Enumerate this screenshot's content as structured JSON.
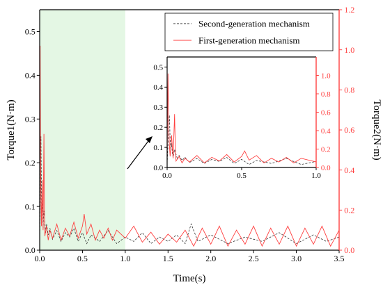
{
  "chart_data": {
    "type": "line",
    "xlabel": "Time(s)",
    "ylabel_left": "Torque1(N·m)",
    "ylabel_right": "Torque2(N·m)",
    "xlim": [
      0,
      3.5
    ],
    "ylim_left": [
      0,
      0.55
    ],
    "ylim_right": [
      0,
      1.2
    ],
    "x_ticks": [
      "0.0",
      "0.5",
      "1.0",
      "1.5",
      "2.0",
      "2.5",
      "3.0",
      "3.5"
    ],
    "y_left_ticks": [
      "0.0",
      "0.1",
      "0.2",
      "0.3",
      "0.4",
      "0.5"
    ],
    "y_right_ticks": [
      "0.0",
      "0.2",
      "0.4",
      "0.6",
      "0.8",
      "1.0",
      "1.2"
    ],
    "highlight_region": {
      "x_from": 0.0,
      "x_to": 1.0,
      "color": "#e4f7e4"
    },
    "legend_placement": "top-right",
    "grid": false,
    "series": [
      {
        "name": "Second-generation mechanism",
        "axis": "left",
        "color": "#333333",
        "dash": "dashed",
        "values": [
          [
            0.0,
            0.02
          ],
          [
            0.005,
            0.1
          ],
          [
            0.01,
            0.19
          ],
          [
            0.015,
            0.26
          ],
          [
            0.02,
            0.14
          ],
          [
            0.025,
            0.09
          ],
          [
            0.03,
            0.12
          ],
          [
            0.035,
            0.07
          ],
          [
            0.04,
            0.05
          ],
          [
            0.05,
            0.09
          ],
          [
            0.06,
            0.065
          ],
          [
            0.07,
            0.04
          ],
          [
            0.08,
            0.06
          ],
          [
            0.1,
            0.035
          ],
          [
            0.12,
            0.05
          ],
          [
            0.15,
            0.025
          ],
          [
            0.2,
            0.045
          ],
          [
            0.25,
            0.02
          ],
          [
            0.3,
            0.04
          ],
          [
            0.35,
            0.03
          ],
          [
            0.4,
            0.05
          ],
          [
            0.45,
            0.02
          ],
          [
            0.5,
            0.04
          ],
          [
            0.55,
            0.015
          ],
          [
            0.6,
            0.035
          ],
          [
            0.7,
            0.02
          ],
          [
            0.8,
            0.045
          ],
          [
            0.9,
            0.015
          ],
          [
            1.0,
            0.03
          ],
          [
            1.1,
            0.02
          ],
          [
            1.2,
            0.04
          ],
          [
            1.3,
            0.015
          ],
          [
            1.4,
            0.03
          ],
          [
            1.5,
            0.02
          ],
          [
            1.6,
            0.035
          ],
          [
            1.7,
            0.015
          ],
          [
            1.77,
            0.06
          ],
          [
            1.85,
            0.02
          ],
          [
            2.0,
            0.035
          ],
          [
            2.2,
            0.015
          ],
          [
            2.4,
            0.03
          ],
          [
            2.6,
            0.02
          ],
          [
            2.8,
            0.04
          ],
          [
            3.0,
            0.015
          ],
          [
            3.2,
            0.035
          ],
          [
            3.35,
            0.02
          ],
          [
            3.5,
            0.03
          ]
        ]
      },
      {
        "name": "First-generation mechanism",
        "axis": "right",
        "color": "#ff4040",
        "dash": "solid",
        "values": [
          [
            0.0,
            0.05
          ],
          [
            0.003,
            0.6
          ],
          [
            0.006,
            1.02
          ],
          [
            0.01,
            0.5
          ],
          [
            0.015,
            0.25
          ],
          [
            0.02,
            0.12
          ],
          [
            0.03,
            0.35
          ],
          [
            0.04,
            0.1
          ],
          [
            0.05,
            0.58
          ],
          [
            0.055,
            0.2
          ],
          [
            0.06,
            0.07
          ],
          [
            0.08,
            0.12
          ],
          [
            0.1,
            0.05
          ],
          [
            0.12,
            0.1
          ],
          [
            0.15,
            0.06
          ],
          [
            0.2,
            0.13
          ],
          [
            0.25,
            0.05
          ],
          [
            0.3,
            0.11
          ],
          [
            0.35,
            0.07
          ],
          [
            0.4,
            0.14
          ],
          [
            0.45,
            0.06
          ],
          [
            0.5,
            0.12
          ],
          [
            0.52,
            0.18
          ],
          [
            0.55,
            0.08
          ],
          [
            0.6,
            0.13
          ],
          [
            0.65,
            0.05
          ],
          [
            0.7,
            0.1
          ],
          [
            0.75,
            0.06
          ],
          [
            0.8,
            0.11
          ],
          [
            0.85,
            0.05
          ],
          [
            0.9,
            0.1
          ],
          [
            1.0,
            0.06
          ],
          [
            1.1,
            0.12
          ],
          [
            1.2,
            0.04
          ],
          [
            1.3,
            0.09
          ],
          [
            1.4,
            0.03
          ],
          [
            1.5,
            0.08
          ],
          [
            1.6,
            0.04
          ],
          [
            1.7,
            0.1
          ],
          [
            1.8,
            0.02
          ],
          [
            1.9,
            0.11
          ],
          [
            2.0,
            0.03
          ],
          [
            2.1,
            0.12
          ],
          [
            2.2,
            0.02
          ],
          [
            2.3,
            0.1
          ],
          [
            2.4,
            0.03
          ],
          [
            2.5,
            0.12
          ],
          [
            2.6,
            0.02
          ],
          [
            2.7,
            0.11
          ],
          [
            2.8,
            0.03
          ],
          [
            2.9,
            0.12
          ],
          [
            3.0,
            0.02
          ],
          [
            3.1,
            0.11
          ],
          [
            3.2,
            0.03
          ],
          [
            3.3,
            0.12
          ],
          [
            3.4,
            0.02
          ],
          [
            3.5,
            0.1
          ]
        ]
      }
    ],
    "inset": {
      "xlim": [
        0,
        1.0
      ],
      "ylim_left": [
        0,
        0.55
      ],
      "ylim_right": [
        0,
        1.2
      ],
      "x_ticks": [
        "0.0",
        "0.5",
        "1.0"
      ],
      "y_left_ticks": [
        "0.0",
        "0.1",
        "0.2",
        "0.3",
        "0.4",
        "0.5"
      ],
      "y_right_ticks": [
        "0.0",
        "0.2",
        "0.4",
        "0.6",
        "0.8",
        "1.0"
      ]
    }
  }
}
